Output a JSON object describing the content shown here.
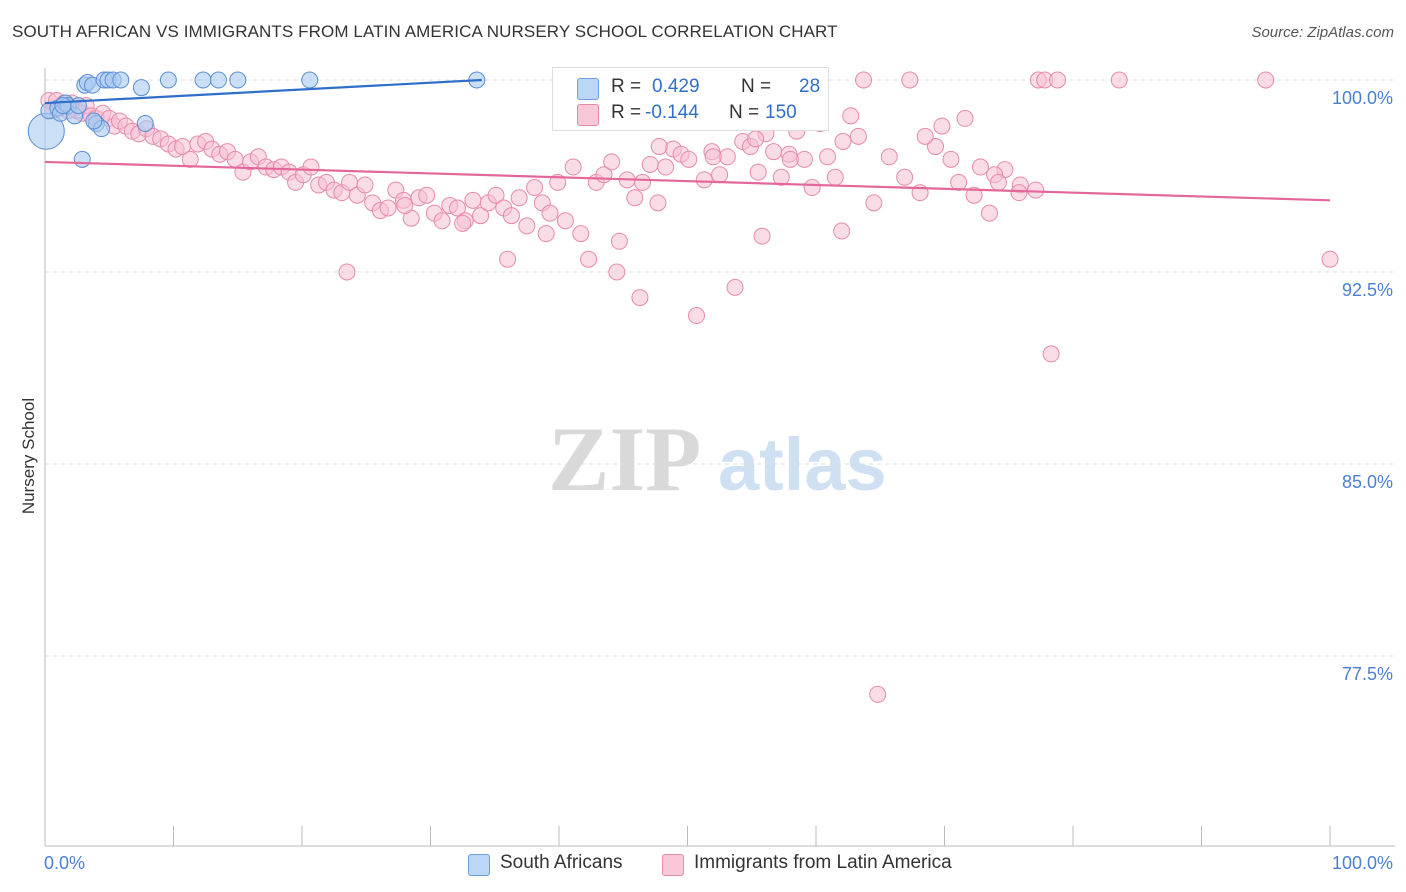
{
  "title": "SOUTH AFRICAN VS IMMIGRANTS FROM LATIN AMERICA NURSERY SCHOOL CORRELATION CHART",
  "source": "Source: ZipAtlas.com",
  "watermark": {
    "zip": "ZIP",
    "atlas": "atlas"
  },
  "legend": {
    "series1": {
      "r_label": "R =",
      "r_value": "0.429",
      "n_label": "N =",
      "n_value": "28"
    },
    "series2": {
      "r_label": "R =",
      "r_value": "-0.144",
      "n_label": "N =",
      "n_value": "150"
    }
  },
  "bottom_legend": {
    "series1": "South Africans",
    "series2": "Immigrants from Latin America"
  },
  "colors": {
    "blue_fill": "#a9c9f0",
    "blue_stroke": "#5b8fd6",
    "blue_line": "#2f6fc9",
    "pink_fill": "#f6bfd3",
    "pink_stroke": "#e88aaa",
    "pink_line": "#e4679a",
    "tick_label": "#4a7fd4",
    "grid": "#dddddd"
  },
  "chart_data": {
    "type": "scatter",
    "title": "SOUTH AFRICAN VS IMMIGRANTS FROM LATIN AMERICA NURSERY SCHOOL CORRELATION CHART",
    "xlabel": "",
    "ylabel": "Nursery School",
    "xlim": [
      0,
      100
    ],
    "ylim": [
      70.0,
      101.0
    ],
    "x_tick_labels": [
      "0.0%",
      "100.0%"
    ],
    "y_ticks": [
      77.5,
      85.0,
      92.5,
      100.0
    ],
    "y_tick_labels": [
      "77.5%",
      "85.0%",
      "92.5%",
      "100.0%"
    ],
    "grid": true,
    "legend_position": "top-center",
    "series": [
      {
        "name": "South Africans",
        "r": 0.429,
        "n": 28,
        "trend": {
          "x": [
            0,
            34
          ],
          "y": [
            99.1,
            100.0
          ]
        },
        "points": [
          {
            "x": 0.1,
            "y": 98.0,
            "s": 18
          },
          {
            "x": 0.3,
            "y": 98.8,
            "s": 8
          },
          {
            "x": 1.0,
            "y": 98.9,
            "s": 8
          },
          {
            "x": 1.2,
            "y": 98.7,
            "s": 8
          },
          {
            "x": 1.6,
            "y": 99.1,
            "s": 8
          },
          {
            "x": 1.8,
            "y": 99.0,
            "s": 8
          },
          {
            "x": 2.3,
            "y": 98.6,
            "s": 8
          },
          {
            "x": 2.6,
            "y": 99.0,
            "s": 8
          },
          {
            "x": 2.9,
            "y": 96.9,
            "s": 8
          },
          {
            "x": 3.1,
            "y": 99.8,
            "s": 8
          },
          {
            "x": 3.3,
            "y": 99.9,
            "s": 8
          },
          {
            "x": 3.7,
            "y": 99.8,
            "s": 8
          },
          {
            "x": 4.0,
            "y": 98.3,
            "s": 8
          },
          {
            "x": 4.4,
            "y": 98.1,
            "s": 8
          },
          {
            "x": 4.6,
            "y": 100.0,
            "s": 8
          },
          {
            "x": 4.9,
            "y": 100.0,
            "s": 8
          },
          {
            "x": 5.3,
            "y": 100.0,
            "s": 8
          },
          {
            "x": 5.9,
            "y": 100.0,
            "s": 8
          },
          {
            "x": 7.5,
            "y": 99.7,
            "s": 8
          },
          {
            "x": 7.8,
            "y": 98.3,
            "s": 8
          },
          {
            "x": 9.6,
            "y": 100.0,
            "s": 8
          },
          {
            "x": 12.3,
            "y": 100.0,
            "s": 8
          },
          {
            "x": 13.5,
            "y": 100.0,
            "s": 8
          },
          {
            "x": 15.0,
            "y": 100.0,
            "s": 8
          },
          {
            "x": 20.6,
            "y": 100.0,
            "s": 8
          },
          {
            "x": 33.6,
            "y": 100.0,
            "s": 8
          },
          {
            "x": 1.4,
            "y": 99.0,
            "s": 8
          },
          {
            "x": 3.8,
            "y": 98.4,
            "s": 8
          }
        ]
      },
      {
        "name": "Immigrants from Latin America",
        "r": -0.144,
        "n": 150,
        "trend": {
          "x": [
            0,
            100
          ],
          "y": [
            96.8,
            95.3
          ]
        },
        "points": [
          {
            "x": 0.3,
            "y": 99.2
          },
          {
            "x": 0.6,
            "y": 98.8
          },
          {
            "x": 0.9,
            "y": 99.2
          },
          {
            "x": 1.2,
            "y": 98.9
          },
          {
            "x": 1.5,
            "y": 99.1
          },
          {
            "x": 1.8,
            "y": 98.8
          },
          {
            "x": 2.1,
            "y": 99.1
          },
          {
            "x": 2.5,
            "y": 98.8
          },
          {
            "x": 2.9,
            "y": 98.7
          },
          {
            "x": 3.2,
            "y": 99.0
          },
          {
            "x": 3.6,
            "y": 98.6
          },
          {
            "x": 4.0,
            "y": 98.5
          },
          {
            "x": 4.5,
            "y": 98.7
          },
          {
            "x": 5.0,
            "y": 98.5
          },
          {
            "x": 5.4,
            "y": 98.2
          },
          {
            "x": 5.8,
            "y": 98.4
          },
          {
            "x": 6.3,
            "y": 98.2
          },
          {
            "x": 6.8,
            "y": 98.0
          },
          {
            "x": 7.3,
            "y": 97.9
          },
          {
            "x": 7.9,
            "y": 98.1
          },
          {
            "x": 8.4,
            "y": 97.8
          },
          {
            "x": 9.0,
            "y": 97.7
          },
          {
            "x": 9.6,
            "y": 97.5
          },
          {
            "x": 10.2,
            "y": 97.3
          },
          {
            "x": 10.7,
            "y": 97.4
          },
          {
            "x": 11.3,
            "y": 96.9
          },
          {
            "x": 11.9,
            "y": 97.5
          },
          {
            "x": 12.5,
            "y": 97.6
          },
          {
            "x": 13.0,
            "y": 97.3
          },
          {
            "x": 13.6,
            "y": 97.1
          },
          {
            "x": 14.2,
            "y": 97.2
          },
          {
            "x": 14.8,
            "y": 96.9
          },
          {
            "x": 15.4,
            "y": 96.4
          },
          {
            "x": 16.0,
            "y": 96.8
          },
          {
            "x": 16.6,
            "y": 97.0
          },
          {
            "x": 17.2,
            "y": 96.6
          },
          {
            "x": 17.8,
            "y": 96.5
          },
          {
            "x": 18.4,
            "y": 96.6
          },
          {
            "x": 19.0,
            "y": 96.4
          },
          {
            "x": 19.5,
            "y": 96.0
          },
          {
            "x": 20.1,
            "y": 96.3
          },
          {
            "x": 20.7,
            "y": 96.6
          },
          {
            "x": 21.3,
            "y": 95.9
          },
          {
            "x": 21.9,
            "y": 96.0
          },
          {
            "x": 22.5,
            "y": 95.7
          },
          {
            "x": 23.1,
            "y": 95.6
          },
          {
            "x": 23.7,
            "y": 96.0
          },
          {
            "x": 24.3,
            "y": 95.5
          },
          {
            "x": 24.9,
            "y": 95.9
          },
          {
            "x": 25.5,
            "y": 95.2
          },
          {
            "x": 26.1,
            "y": 94.9
          },
          {
            "x": 26.7,
            "y": 95.0
          },
          {
            "x": 27.3,
            "y": 95.7
          },
          {
            "x": 27.9,
            "y": 95.3
          },
          {
            "x": 28.5,
            "y": 94.6
          },
          {
            "x": 29.1,
            "y": 95.4
          },
          {
            "x": 29.7,
            "y": 95.5
          },
          {
            "x": 30.3,
            "y": 94.8
          },
          {
            "x": 30.9,
            "y": 94.5
          },
          {
            "x": 31.5,
            "y": 95.1
          },
          {
            "x": 32.1,
            "y": 95.0
          },
          {
            "x": 32.7,
            "y": 94.5
          },
          {
            "x": 33.3,
            "y": 95.3
          },
          {
            "x": 33.9,
            "y": 94.7
          },
          {
            "x": 34.5,
            "y": 95.2
          },
          {
            "x": 35.1,
            "y": 95.5
          },
          {
            "x": 35.7,
            "y": 95.0
          },
          {
            "x": 36.3,
            "y": 94.7
          },
          {
            "x": 36.9,
            "y": 95.4
          },
          {
            "x": 37.5,
            "y": 94.3
          },
          {
            "x": 38.1,
            "y": 95.8
          },
          {
            "x": 38.7,
            "y": 95.2
          },
          {
            "x": 39.3,
            "y": 94.8
          },
          {
            "x": 39.9,
            "y": 96.0
          },
          {
            "x": 40.5,
            "y": 94.5
          },
          {
            "x": 41.1,
            "y": 96.6
          },
          {
            "x": 41.7,
            "y": 94.0
          },
          {
            "x": 42.3,
            "y": 93.0
          },
          {
            "x": 42.9,
            "y": 96.0
          },
          {
            "x": 43.5,
            "y": 96.3
          },
          {
            "x": 44.1,
            "y": 96.8
          },
          {
            "x": 44.7,
            "y": 93.7
          },
          {
            "x": 45.3,
            "y": 96.1
          },
          {
            "x": 45.9,
            "y": 95.4
          },
          {
            "x": 46.5,
            "y": 96.0
          },
          {
            "x": 47.1,
            "y": 96.7
          },
          {
            "x": 47.7,
            "y": 95.2
          },
          {
            "x": 48.3,
            "y": 96.6
          },
          {
            "x": 48.9,
            "y": 97.3
          },
          {
            "x": 49.5,
            "y": 97.1
          },
          {
            "x": 50.1,
            "y": 96.9
          },
          {
            "x": 50.7,
            "y": 90.8
          },
          {
            "x": 51.3,
            "y": 96.1
          },
          {
            "x": 51.9,
            "y": 97.2
          },
          {
            "x": 52.5,
            "y": 96.3
          },
          {
            "x": 53.1,
            "y": 97.0
          },
          {
            "x": 53.7,
            "y": 91.9
          },
          {
            "x": 54.3,
            "y": 97.6
          },
          {
            "x": 54.9,
            "y": 97.4
          },
          {
            "x": 55.5,
            "y": 96.4
          },
          {
            "x": 56.1,
            "y": 97.9
          },
          {
            "x": 56.7,
            "y": 97.2
          },
          {
            "x": 57.3,
            "y": 96.2
          },
          {
            "x": 57.9,
            "y": 97.1
          },
          {
            "x": 58.5,
            "y": 98.0
          },
          {
            "x": 59.1,
            "y": 96.9
          },
          {
            "x": 59.7,
            "y": 95.8
          },
          {
            "x": 60.3,
            "y": 98.3
          },
          {
            "x": 60.9,
            "y": 97.0
          },
          {
            "x": 61.5,
            "y": 96.2
          },
          {
            "x": 62.1,
            "y": 97.6
          },
          {
            "x": 62.7,
            "y": 98.6
          },
          {
            "x": 63.3,
            "y": 97.8
          },
          {
            "x": 64.5,
            "y": 95.2
          },
          {
            "x": 65.7,
            "y": 97.0
          },
          {
            "x": 66.9,
            "y": 96.2
          },
          {
            "x": 68.1,
            "y": 95.6
          },
          {
            "x": 69.3,
            "y": 97.4
          },
          {
            "x": 70.5,
            "y": 96.9
          },
          {
            "x": 71.1,
            "y": 96.0
          },
          {
            "x": 72.3,
            "y": 95.5
          },
          {
            "x": 73.5,
            "y": 94.8
          },
          {
            "x": 74.7,
            "y": 96.5
          },
          {
            "x": 75.9,
            "y": 95.9
          },
          {
            "x": 77.1,
            "y": 95.7
          },
          {
            "x": 64.8,
            "y": 76.0
          },
          {
            "x": 78.3,
            "y": 89.3
          },
          {
            "x": 23.5,
            "y": 92.5
          },
          {
            "x": 44.5,
            "y": 92.5
          },
          {
            "x": 46.3,
            "y": 91.5
          },
          {
            "x": 62.0,
            "y": 94.1
          },
          {
            "x": 55.8,
            "y": 93.9
          },
          {
            "x": 32.5,
            "y": 94.4
          },
          {
            "x": 36.0,
            "y": 93.0
          },
          {
            "x": 39.0,
            "y": 94.0
          },
          {
            "x": 100.0,
            "y": 93.0
          },
          {
            "x": 63.7,
            "y": 100.0
          },
          {
            "x": 67.3,
            "y": 100.0
          },
          {
            "x": 77.3,
            "y": 100.0
          },
          {
            "x": 77.8,
            "y": 100.0
          },
          {
            "x": 78.8,
            "y": 100.0
          },
          {
            "x": 83.6,
            "y": 100.0
          },
          {
            "x": 95.0,
            "y": 100.0
          },
          {
            "x": 55.3,
            "y": 97.7
          },
          {
            "x": 58.0,
            "y": 96.9
          },
          {
            "x": 68.5,
            "y": 97.8
          },
          {
            "x": 72.8,
            "y": 96.6
          },
          {
            "x": 69.8,
            "y": 98.2
          },
          {
            "x": 71.6,
            "y": 98.5
          },
          {
            "x": 73.9,
            "y": 96.3
          },
          {
            "x": 74.2,
            "y": 96.0
          },
          {
            "x": 75.8,
            "y": 95.6
          },
          {
            "x": 47.8,
            "y": 97.4
          },
          {
            "x": 52.0,
            "y": 97.0
          },
          {
            "x": 28.0,
            "y": 95.1
          }
        ]
      }
    ]
  }
}
